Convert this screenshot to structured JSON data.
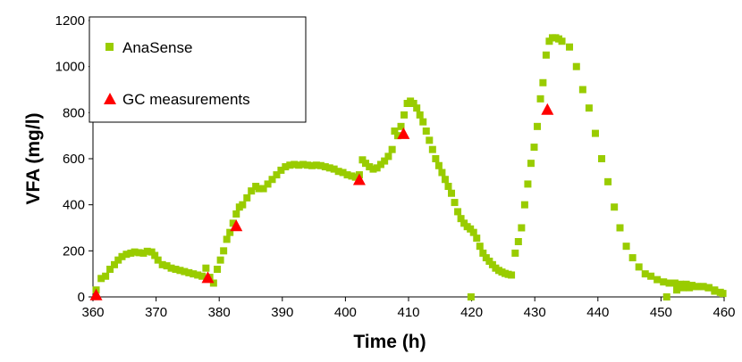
{
  "chart_data": {
    "type": "scatter",
    "xlabel": "Time (h)",
    "ylabel": "VFA (mg/l)",
    "xlim": [
      360,
      460
    ],
    "ylim": [
      0,
      1200
    ],
    "x_ticks": [
      360,
      370,
      380,
      390,
      400,
      410,
      420,
      430,
      440,
      450,
      460
    ],
    "y_ticks": [
      0,
      200,
      400,
      600,
      800,
      1000,
      1200
    ],
    "legend_position": "top-left",
    "grid": false,
    "series": [
      {
        "name": "AnaSense",
        "marker": "square",
        "color": "#99cc00",
        "points": [
          [
            360.5,
            30
          ],
          [
            361.3,
            80
          ],
          [
            362,
            90
          ],
          [
            362.7,
            120
          ],
          [
            363.4,
            140
          ],
          [
            364,
            160
          ],
          [
            364.6,
            175
          ],
          [
            365.3,
            185
          ],
          [
            366,
            190
          ],
          [
            366.6,
            195
          ],
          [
            367.3,
            192
          ],
          [
            368,
            190
          ],
          [
            368.6,
            198
          ],
          [
            369.3,
            195
          ],
          [
            369.8,
            180
          ],
          [
            370.3,
            160
          ],
          [
            371,
            140
          ],
          [
            371.7,
            135
          ],
          [
            372.4,
            125
          ],
          [
            373.1,
            120
          ],
          [
            373.8,
            115
          ],
          [
            374.5,
            110
          ],
          [
            375.2,
            105
          ],
          [
            375.9,
            100
          ],
          [
            376.6,
            95
          ],
          [
            377.3,
            90
          ],
          [
            377.9,
            125
          ],
          [
            378.5,
            85
          ],
          [
            379.1,
            60
          ],
          [
            379.7,
            120
          ],
          [
            380.2,
            160
          ],
          [
            380.7,
            200
          ],
          [
            381.2,
            250
          ],
          [
            381.7,
            280
          ],
          [
            382.2,
            320
          ],
          [
            382.7,
            360
          ],
          [
            383.2,
            390
          ],
          [
            383.7,
            400
          ],
          [
            384.4,
            430
          ],
          [
            385.1,
            460
          ],
          [
            385.8,
            480
          ],
          [
            386.3,
            470
          ],
          [
            387,
            470
          ],
          [
            387.7,
            490
          ],
          [
            388.4,
            510
          ],
          [
            389.1,
            530
          ],
          [
            389.8,
            550
          ],
          [
            390.5,
            565
          ],
          [
            391.2,
            572
          ],
          [
            391.9,
            575
          ],
          [
            392.6,
            572
          ],
          [
            393.3,
            575
          ],
          [
            394,
            572
          ],
          [
            394.7,
            570
          ],
          [
            395.4,
            572
          ],
          [
            396.1,
            570
          ],
          [
            396.8,
            565
          ],
          [
            397.5,
            560
          ],
          [
            398.2,
            555
          ],
          [
            398.9,
            545
          ],
          [
            399.6,
            540
          ],
          [
            400.3,
            530
          ],
          [
            401,
            525
          ],
          [
            401.6,
            520
          ],
          [
            402.2,
            530
          ],
          [
            402.7,
            595
          ],
          [
            403.2,
            580
          ],
          [
            403.8,
            565
          ],
          [
            404.4,
            555
          ],
          [
            405,
            560
          ],
          [
            405.6,
            575
          ],
          [
            406.2,
            590
          ],
          [
            406.8,
            610
          ],
          [
            407.4,
            640
          ],
          [
            407.8,
            720
          ],
          [
            408.3,
            700
          ],
          [
            408.8,
            740
          ],
          [
            409.3,
            790
          ],
          [
            409.8,
            840
          ],
          [
            410.3,
            850
          ],
          [
            410.8,
            840
          ],
          [
            411.3,
            820
          ],
          [
            411.8,
            790
          ],
          [
            412.3,
            760
          ],
          [
            412.8,
            720
          ],
          [
            413.3,
            680
          ],
          [
            413.8,
            640
          ],
          [
            414.3,
            600
          ],
          [
            414.8,
            570
          ],
          [
            415.3,
            540
          ],
          [
            415.8,
            510
          ],
          [
            416.3,
            480
          ],
          [
            416.8,
            450
          ],
          [
            417.3,
            410
          ],
          [
            417.8,
            370
          ],
          [
            418.3,
            340
          ],
          [
            418.8,
            320
          ],
          [
            419.3,
            305
          ],
          [
            419.8,
            295
          ],
          [
            420.3,
            280
          ],
          [
            420.8,
            255
          ],
          [
            421.3,
            220
          ],
          [
            421.8,
            190
          ],
          [
            422.3,
            170
          ],
          [
            422.8,
            155
          ],
          [
            423.3,
            140
          ],
          [
            423.8,
            125
          ],
          [
            424.3,
            115
          ],
          [
            424.8,
            108
          ],
          [
            425.3,
            102
          ],
          [
            425.8,
            98
          ],
          [
            426.3,
            95
          ],
          [
            419.9,
            0
          ],
          [
            426.9,
            190
          ],
          [
            427.4,
            240
          ],
          [
            427.9,
            300
          ],
          [
            428.4,
            400
          ],
          [
            428.9,
            490
          ],
          [
            429.4,
            580
          ],
          [
            429.9,
            650
          ],
          [
            430.4,
            740
          ],
          [
            430.9,
            860
          ],
          [
            431.3,
            930
          ],
          [
            431.8,
            1050
          ],
          [
            432.3,
            1110
          ],
          [
            432.8,
            1125
          ],
          [
            433.3,
            1125
          ],
          [
            433.8,
            1120
          ],
          [
            434.3,
            1110
          ],
          [
            435.5,
            1085
          ],
          [
            436.6,
            1000
          ],
          [
            437.6,
            900
          ],
          [
            438.6,
            820
          ],
          [
            439.6,
            710
          ],
          [
            440.6,
            600
          ],
          [
            441.6,
            500
          ],
          [
            442.6,
            390
          ],
          [
            443.5,
            300
          ],
          [
            444.5,
            220
          ],
          [
            445.5,
            170
          ],
          [
            446.5,
            130
          ],
          [
            447.5,
            100
          ],
          [
            448.4,
            90
          ],
          [
            449.4,
            75
          ],
          [
            450.4,
            65
          ],
          [
            451.3,
            60
          ],
          [
            452.2,
            60
          ],
          [
            453.1,
            55
          ],
          [
            454,
            55
          ],
          [
            454.9,
            50
          ],
          [
            455.8,
            45
          ],
          [
            456.7,
            45
          ],
          [
            457.6,
            40
          ],
          [
            458.5,
            25
          ],
          [
            459.4,
            20
          ],
          [
            450.9,
            0
          ],
          [
            452.5,
            30
          ],
          [
            453.5,
            40
          ],
          [
            454.5,
            40
          ],
          [
            455.5,
            45
          ],
          [
            456.5,
            45
          ],
          [
            457.5,
            40
          ],
          [
            458.5,
            30
          ],
          [
            459.8,
            15
          ]
        ]
      },
      {
        "name": "GC measurements",
        "marker": "triangle",
        "color": "#ff0000",
        "points": [
          [
            360.5,
            5
          ],
          [
            378.2,
            80
          ],
          [
            382.7,
            305
          ],
          [
            402.2,
            505
          ],
          [
            409.2,
            705
          ],
          [
            432,
            810
          ]
        ]
      }
    ]
  }
}
